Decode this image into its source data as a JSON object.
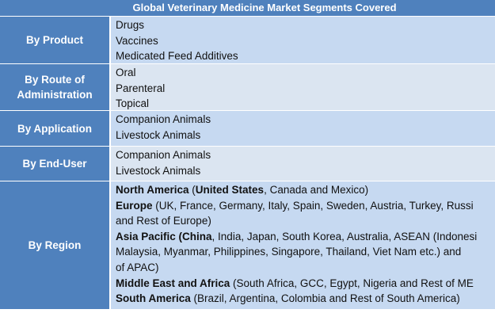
{
  "table": {
    "title": "Global Veterinary Medicine Market Segments Covered",
    "rows": [
      {
        "label": "By Product",
        "lines": [
          [
            "Drugs"
          ],
          [
            "Vaccines"
          ],
          [
            "Medicated Feed Additives"
          ]
        ]
      },
      {
        "label": "By Route of Administration",
        "lines": [
          [
            "Oral"
          ],
          [
            "Parenteral"
          ],
          [
            "Topical"
          ]
        ]
      },
      {
        "label": "By Application",
        "lines": [
          [
            "Companion Animals"
          ],
          [
            "Livestock Animals"
          ]
        ]
      },
      {
        "label": "By End-User",
        "lines": [
          [
            "Companion Animals"
          ],
          [
            "Livestock Animals"
          ]
        ]
      },
      {
        "label": "By Region",
        "lines": [
          [
            {
              "bold": "North America"
            },
            " (",
            {
              "bold": "United States"
            },
            ", Canada and Mexico)"
          ],
          [
            {
              "bold": "Europe"
            },
            " (UK, France, Germany, Italy, Spain, Sweden, Austria, Turkey, Russi"
          ],
          [
            "and Rest of Europe)"
          ],
          [
            {
              "bold": "Asia Pacific (China"
            },
            ", India, Japan, South Korea, Australia, ASEAN (Indonesi"
          ],
          [
            "Malaysia, Myanmar, Philippines, Singapore, Thailand, Viet Nam etc.) and"
          ],
          [
            "of APAC)"
          ],
          [
            {
              "bold": "Middle East and Africa"
            },
            " (South Africa, GCC, Egypt, Nigeria and Rest of ME"
          ],
          [
            {
              "bold": "South America"
            },
            " (Brazil, Argentina, Colombia and Rest of South America)"
          ]
        ]
      }
    ]
  }
}
